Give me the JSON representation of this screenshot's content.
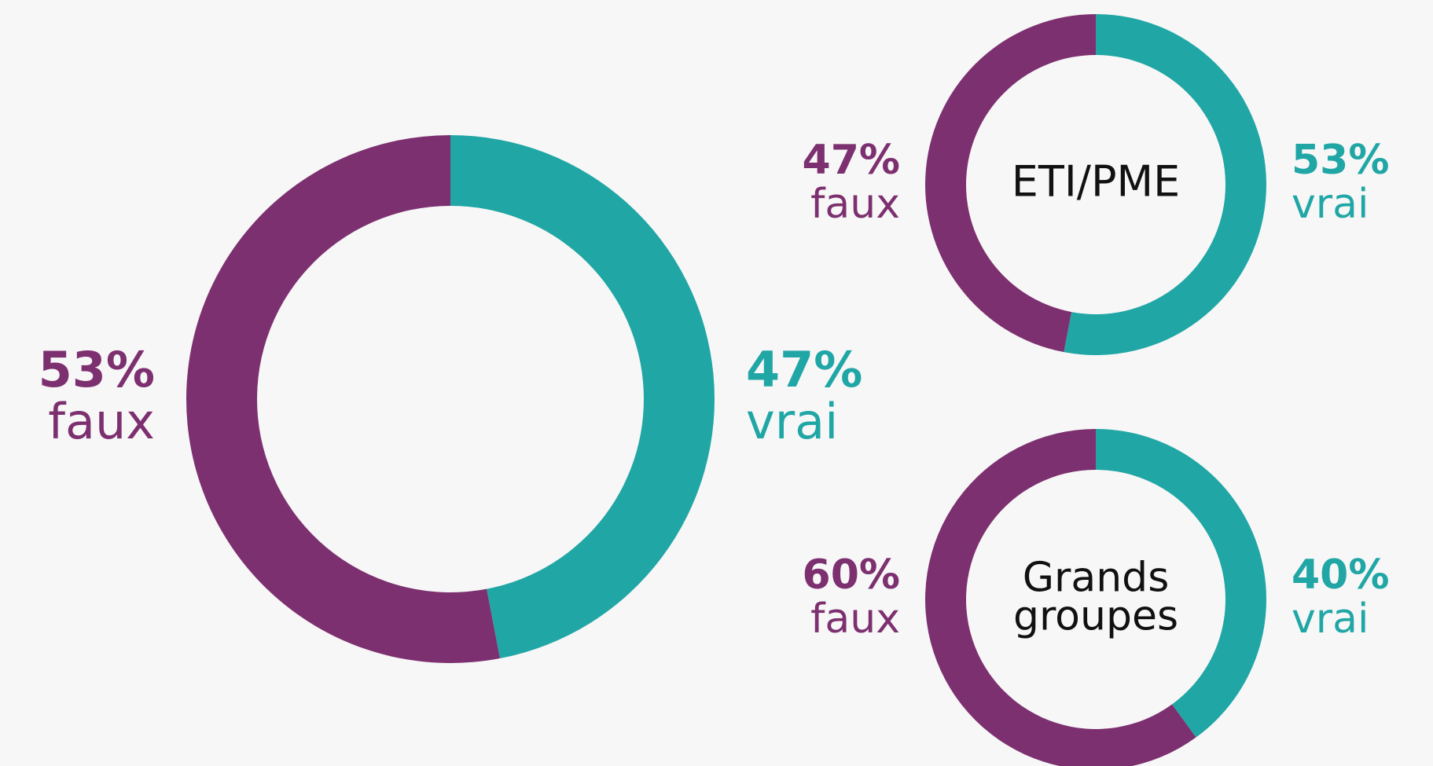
{
  "chart_data": [
    {
      "type": "donut",
      "categories": [
        "vrai",
        "faux"
      ],
      "values": [
        47,
        53
      ],
      "value_labels": [
        "47%",
        "53%"
      ],
      "colors": [
        "#21a6a6",
        "#7d3070"
      ]
    },
    {
      "type": "donut",
      "title": "ETI/PME",
      "categories": [
        "vrai",
        "faux"
      ],
      "values": [
        53,
        47
      ],
      "value_labels": [
        "53%",
        "47%"
      ],
      "colors": [
        "#21a6a6",
        "#7d3070"
      ]
    },
    {
      "type": "donut",
      "title": "Grands groupes",
      "categories": [
        "vrai",
        "faux"
      ],
      "values": [
        40,
        60
      ],
      "value_labels": [
        "40%",
        "60%"
      ],
      "colors": [
        "#21a6a6",
        "#7d3070"
      ]
    }
  ]
}
